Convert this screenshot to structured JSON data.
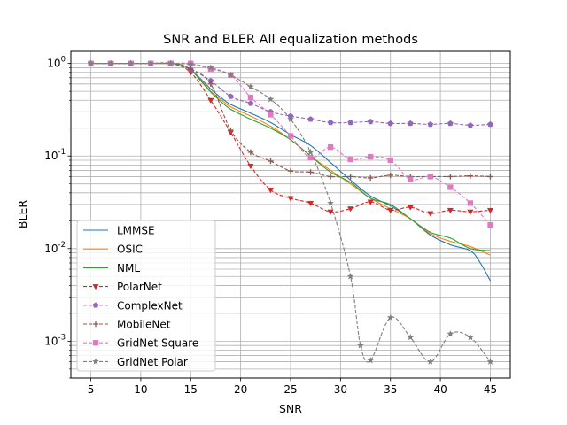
{
  "chart_data": {
    "type": "line",
    "title": "SNR and BLER All equalization methods",
    "xlabel": "SNR",
    "ylabel": "BLER",
    "xlim": [
      3,
      47
    ],
    "ylim": [
      0.0004,
      1.35
    ],
    "yscale": "log",
    "grid": true,
    "legend_position": "lower left",
    "x_ticks": [
      5,
      10,
      15,
      20,
      25,
      30,
      35,
      40,
      45
    ],
    "x_tick_labels": [
      "5",
      "10",
      "15",
      "20",
      "25",
      "30",
      "35",
      "40",
      "45"
    ],
    "y_ticks": [
      0.001,
      0.01,
      0.1,
      1
    ],
    "y_tick_labels": [
      "10^-3",
      "10^-2",
      "10^-1",
      "10^0"
    ],
    "series": [
      {
        "name": "LMMSE",
        "color": "#1f77b4",
        "style": "solid",
        "marker": "none",
        "x": [
          5,
          7,
          9,
          11,
          13,
          14,
          15,
          16,
          17,
          18,
          19,
          21,
          23,
          25,
          27,
          29,
          31,
          33,
          35,
          37,
          39,
          41,
          43,
          44,
          45
        ],
        "y": [
          1.0,
          1.0,
          1.0,
          1.0,
          1.0,
          0.97,
          0.86,
          0.68,
          0.53,
          0.43,
          0.36,
          0.29,
          0.23,
          0.17,
          0.13,
          0.085,
          0.055,
          0.037,
          0.029,
          0.021,
          0.014,
          0.011,
          0.0095,
          0.007,
          0.0045
        ]
      },
      {
        "name": "OSIC",
        "color": "#ff7f0e",
        "style": "solid",
        "marker": "none",
        "x": [
          5,
          7,
          9,
          11,
          13,
          14,
          15,
          16,
          17,
          18,
          19,
          21,
          23,
          25,
          27,
          29,
          31,
          33,
          35,
          37,
          39,
          41,
          43,
          45
        ],
        "y": [
          1.0,
          1.0,
          1.0,
          1.0,
          1.0,
          0.97,
          0.86,
          0.66,
          0.5,
          0.41,
          0.34,
          0.27,
          0.21,
          0.15,
          0.1,
          0.07,
          0.05,
          0.035,
          0.027,
          0.021,
          0.0145,
          0.012,
          0.0105,
          0.0085
        ]
      },
      {
        "name": "NML",
        "color": "#2ca02c",
        "style": "solid",
        "marker": "none",
        "x": [
          5,
          7,
          9,
          11,
          13,
          14,
          15,
          16,
          17,
          18,
          19,
          21,
          23,
          25,
          27,
          29,
          31,
          33,
          35,
          37,
          39,
          41,
          43,
          45
        ],
        "y": [
          1.0,
          1.0,
          1.0,
          1.0,
          1.0,
          0.97,
          0.86,
          0.65,
          0.49,
          0.39,
          0.32,
          0.25,
          0.2,
          0.15,
          0.1,
          0.067,
          0.052,
          0.035,
          0.03,
          0.021,
          0.015,
          0.013,
          0.01,
          0.0095
        ]
      },
      {
        "name": "PolarNet",
        "color": "#d62728",
        "style": "dashed",
        "marker": "triangle-down",
        "x": [
          5,
          7,
          9,
          11,
          13,
          15,
          17,
          19,
          21,
          23,
          25,
          27,
          29,
          31,
          33,
          35,
          37,
          39,
          41,
          43,
          45
        ],
        "y": [
          1.0,
          1.0,
          1.0,
          1.0,
          1.0,
          0.8,
          0.4,
          0.18,
          0.078,
          0.043,
          0.035,
          0.031,
          0.025,
          0.027,
          0.032,
          0.026,
          0.028,
          0.024,
          0.026,
          0.025,
          0.026
        ]
      },
      {
        "name": "ComplexNet",
        "color": "#9467bd",
        "style": "dashed",
        "marker": "pentagon",
        "x": [
          5,
          7,
          9,
          11,
          13,
          15,
          17,
          19,
          21,
          23,
          25,
          27,
          29,
          31,
          33,
          35,
          37,
          39,
          41,
          43,
          45
        ],
        "y": [
          1.0,
          1.0,
          1.0,
          1.0,
          1.0,
          0.86,
          0.65,
          0.44,
          0.37,
          0.3,
          0.27,
          0.25,
          0.23,
          0.23,
          0.235,
          0.225,
          0.225,
          0.22,
          0.225,
          0.215,
          0.22
        ]
      },
      {
        "name": "MobileNet",
        "color": "#8c564b",
        "style": "dashed",
        "marker": "plus",
        "x": [
          5,
          7,
          9,
          11,
          13,
          15,
          17,
          19,
          21,
          23,
          25,
          27,
          29,
          31,
          33,
          35,
          37,
          39,
          41,
          43,
          45
        ],
        "y": [
          1.0,
          1.0,
          1.0,
          1.0,
          1.0,
          0.87,
          0.6,
          0.19,
          0.11,
          0.088,
          0.069,
          0.067,
          0.06,
          0.06,
          0.058,
          0.062,
          0.06,
          0.06,
          0.06,
          0.061,
          0.06
        ]
      },
      {
        "name": "GridNet Square",
        "color": "#e377c2",
        "style": "dashed",
        "marker": "square",
        "x": [
          5,
          7,
          9,
          11,
          13,
          15,
          17,
          19,
          21,
          23,
          25,
          27,
          29,
          31,
          33,
          35,
          37,
          39,
          41,
          43,
          45
        ],
        "y": [
          1.0,
          1.0,
          1.0,
          1.0,
          1.0,
          1.0,
          0.87,
          0.75,
          0.43,
          0.28,
          0.165,
          0.096,
          0.125,
          0.092,
          0.098,
          0.09,
          0.056,
          0.06,
          0.046,
          0.031,
          0.018
        ]
      },
      {
        "name": "GridNet Polar",
        "color": "#7f7f7f",
        "style": "dashed",
        "marker": "star",
        "x": [
          5,
          7,
          9,
          11,
          13,
          15,
          17,
          19,
          21,
          23,
          25,
          27,
          29,
          31,
          32,
          33,
          35,
          37,
          39,
          41,
          43,
          45
        ],
        "y": [
          1.0,
          1.0,
          1.0,
          1.0,
          1.0,
          0.98,
          0.9,
          0.75,
          0.56,
          0.41,
          0.25,
          0.11,
          0.031,
          0.005,
          0.0009,
          0.00062,
          0.0018,
          0.0011,
          0.0006,
          0.0012,
          0.0011,
          0.0006
        ]
      }
    ]
  }
}
